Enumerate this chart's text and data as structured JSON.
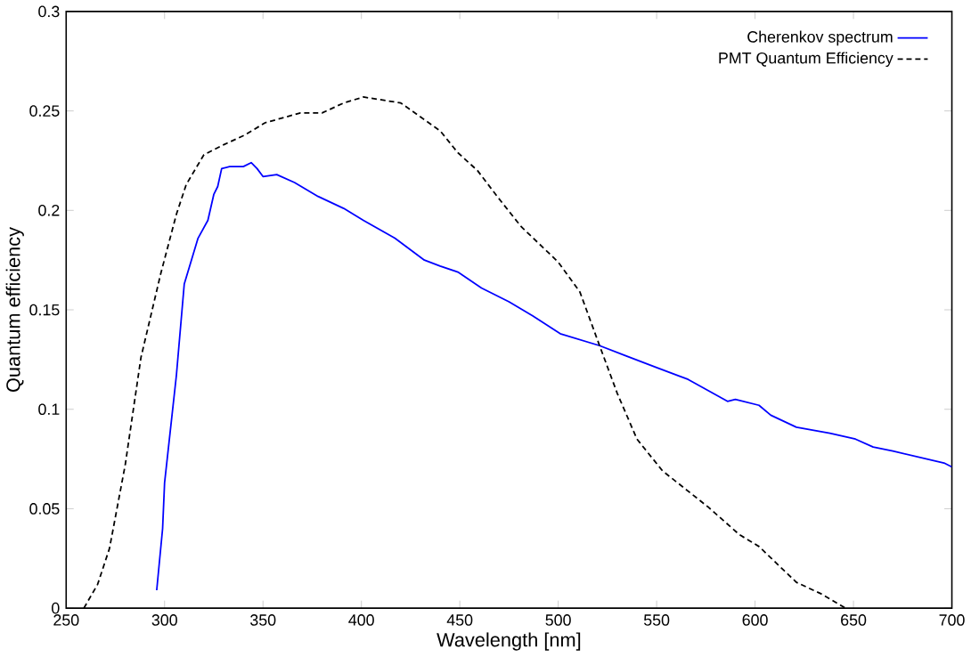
{
  "chart_data": {
    "type": "line",
    "xlabel": "Wavelength [nm]",
    "ylabel": "Quantum efficiency",
    "xlim": [
      250,
      700
    ],
    "ylim": [
      0,
      0.3
    ],
    "xticks": [
      250,
      300,
      350,
      400,
      450,
      500,
      550,
      600,
      650,
      700
    ],
    "yticks": [
      0,
      0.05,
      0.1,
      0.15,
      0.2,
      0.25,
      0.3
    ],
    "grid": false,
    "legend": "top right",
    "marker": "none",
    "series": [
      {
        "name": "Cherenkov spectrum",
        "color": "#0000ff",
        "line_style": "solid",
        "x": [
          296,
          299,
          300,
          306,
          310,
          317,
          322,
          325,
          327,
          329,
          333,
          340,
          344,
          347,
          350,
          357,
          366,
          378,
          391,
          401,
          417,
          432,
          440,
          449,
          461,
          475,
          487,
          501,
          521,
          534,
          550,
          566,
          586,
          590,
          602,
          608,
          621,
          638,
          651,
          660,
          670,
          683,
          696,
          700
        ],
        "values": [
          0.009,
          0.04,
          0.063,
          0.117,
          0.163,
          0.186,
          0.195,
          0.208,
          0.212,
          0.221,
          0.222,
          0.222,
          0.224,
          0.221,
          0.217,
          0.218,
          0.214,
          0.207,
          0.201,
          0.195,
          0.186,
          0.175,
          0.172,
          0.169,
          0.161,
          0.154,
          0.147,
          0.138,
          0.132,
          0.127,
          0.121,
          0.115,
          0.104,
          0.105,
          0.102,
          0.097,
          0.091,
          0.088,
          0.085,
          0.081,
          0.079,
          0.076,
          0.073,
          0.071
        ]
      },
      {
        "name": "PMT Quantum Efficiency",
        "color": "#000000",
        "line_style": "dashed",
        "x": [
          259,
          266,
          272,
          280,
          288,
          298,
          306,
          311,
          320,
          330,
          341,
          351,
          369,
          380,
          391,
          401,
          420,
          440,
          449,
          459,
          469,
          481,
          500,
          511,
          521,
          530,
          540,
          553,
          576,
          592,
          602,
          621,
          634,
          646
        ],
        "values": [
          0,
          0.012,
          0.03,
          0.072,
          0.126,
          0.168,
          0.198,
          0.213,
          0.228,
          0.233,
          0.238,
          0.244,
          0.249,
          0.249,
          0.254,
          0.257,
          0.254,
          0.24,
          0.229,
          0.22,
          0.207,
          0.192,
          0.174,
          0.159,
          0.132,
          0.108,
          0.085,
          0.069,
          0.051,
          0.037,
          0.031,
          0.013,
          0.007,
          0
        ]
      }
    ]
  }
}
